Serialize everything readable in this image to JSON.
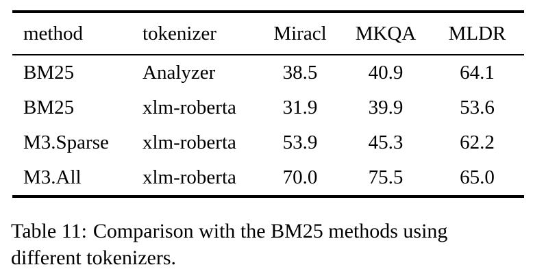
{
  "table": {
    "columns": [
      {
        "key": "method",
        "label": "method"
      },
      {
        "key": "tokenizer",
        "label": "tokenizer"
      },
      {
        "key": "miracl",
        "label": "Miracl"
      },
      {
        "key": "mkqa",
        "label": "MKQA"
      },
      {
        "key": "mldr",
        "label": "MLDR"
      }
    ],
    "rows": [
      [
        "BM25",
        "Analyzer",
        "38.5",
        "40.9",
        "64.1"
      ],
      [
        "BM25",
        "xlm-roberta",
        "31.9",
        "39.9",
        "53.6"
      ],
      [
        "M3.Sparse",
        "xlm-roberta",
        "53.9",
        "45.3",
        "62.2"
      ],
      [
        "M3.All",
        "xlm-roberta",
        "70.0",
        "75.5",
        "65.0"
      ]
    ]
  },
  "caption": {
    "label": "Table 11:",
    "text": "Comparison with the BM25 methods using different tokenizers."
  },
  "colors": {
    "text": "#000000",
    "background": "#ffffff",
    "rule": "#000000"
  }
}
